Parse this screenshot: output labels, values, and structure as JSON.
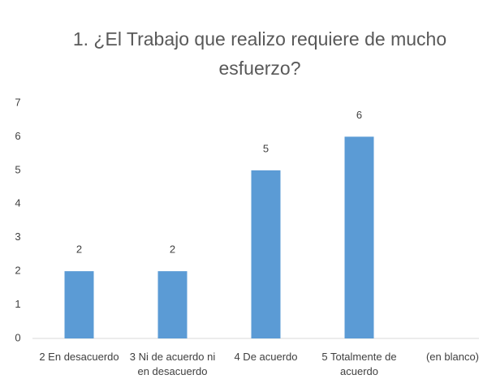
{
  "chart_data": {
    "type": "bar",
    "title": "1. ¿El Trabajo que realizo requiere de mucho esfuerzo?",
    "categories": [
      "2 En desacuerdo",
      "3 Ni de acuerdo ni en desacuerdo",
      "4 De acuerdo",
      "5 Totalmente de acuerdo",
      "(en blanco)"
    ],
    "values": [
      2,
      2,
      5,
      6,
      null
    ],
    "color": "#5b9bd5",
    "ylim": [
      0,
      7
    ],
    "yticks": [
      0,
      1,
      2,
      3,
      4,
      5,
      6,
      7
    ],
    "grid": false
  }
}
